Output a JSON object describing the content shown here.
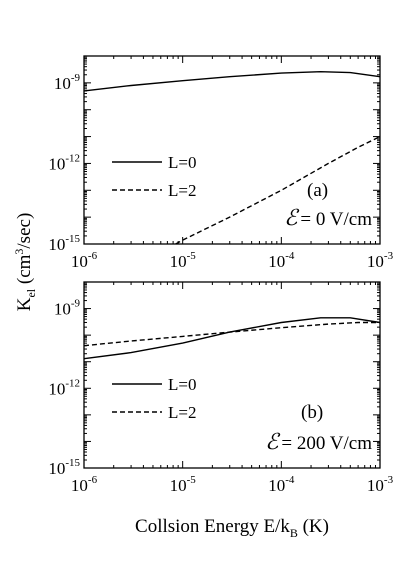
{
  "chart_data": [
    {
      "type": "line",
      "panel_label": "(a)",
      "field_symbol": "ℰ",
      "field_value": "= 0 V/cm",
      "xscale": "log",
      "yscale": "log",
      "xlim": [
        1e-06,
        0.001
      ],
      "ylim": [
        1e-15,
        1e-08
      ],
      "x_ticks": [
        {
          "base": "10",
          "exp": "-6",
          "value": 1e-06
        },
        {
          "base": "10",
          "exp": "-5",
          "value": 1e-05
        },
        {
          "base": "10",
          "exp": "-4",
          "value": 0.0001
        },
        {
          "base": "10",
          "exp": "-3",
          "value": 0.001
        }
      ],
      "y_ticks": [
        {
          "base": "10",
          "exp": "-9",
          "value": 1e-09
        },
        {
          "base": "10",
          "exp": "-12",
          "value": 1e-12
        },
        {
          "base": "10",
          "exp": "-15",
          "value": 1e-15
        }
      ],
      "legend": {
        "placement": "middle-left"
      },
      "series": [
        {
          "name": "L=0",
          "style": "solid",
          "x": [
            1e-06,
            3e-06,
            1e-05,
            3e-05,
            0.0001,
            0.00025,
            0.0005,
            0.001
          ],
          "y": [
            5e-10,
            8e-10,
            1.2e-09,
            1.7e-09,
            2.3e-09,
            2.6e-09,
            2.4e-09,
            1.7e-09
          ]
        },
        {
          "name": "L=2",
          "style": "dashed",
          "x": [
            8.5e-06,
            1e-05,
            3e-05,
            0.0001,
            0.0003,
            0.0006,
            0.001
          ],
          "y": [
            1e-15,
            1.4e-15,
            1e-14,
            1e-13,
            1e-12,
            4e-12,
            1e-11
          ]
        }
      ]
    },
    {
      "type": "line",
      "panel_label": "(b)",
      "field_symbol": "ℰ",
      "field_value": "= 200 V/cm",
      "xscale": "log",
      "yscale": "log",
      "xlim": [
        1e-06,
        0.001
      ],
      "ylim": [
        1e-15,
        1e-08
      ],
      "x_ticks": [
        {
          "base": "10",
          "exp": "-6",
          "value": 1e-06
        },
        {
          "base": "10",
          "exp": "-5",
          "value": 1e-05
        },
        {
          "base": "10",
          "exp": "-4",
          "value": 0.0001
        },
        {
          "base": "10",
          "exp": "-3",
          "value": 0.001
        }
      ],
      "y_ticks": [
        {
          "base": "10",
          "exp": "-9",
          "value": 1e-09
        },
        {
          "base": "10",
          "exp": "-12",
          "value": 1e-12
        },
        {
          "base": "10",
          "exp": "-15",
          "value": 1e-15
        }
      ],
      "legend": {
        "placement": "middle-left"
      },
      "series": [
        {
          "name": "L=0",
          "style": "solid",
          "x": [
            1e-06,
            3e-06,
            1e-05,
            3e-05,
            0.0001,
            0.00025,
            0.0005,
            0.001
          ],
          "y": [
            1.3e-11,
            2.2e-11,
            5e-11,
            1.3e-10,
            3e-10,
            4.5e-10,
            4.5e-10,
            3e-10
          ]
        },
        {
          "name": "L=2",
          "style": "dashed",
          "x": [
            1e-06,
            3e-06,
            1e-05,
            3e-05,
            0.0001,
            0.0003,
            0.0006,
            0.001
          ],
          "y": [
            4e-11,
            6e-11,
            9e-11,
            1.3e-10,
            1.9e-10,
            2.6e-10,
            3e-10,
            3e-10
          ]
        }
      ]
    }
  ],
  "y_axis_title": {
    "main": "K",
    "sub": "el",
    "pre": " (cm",
    "sup": "3",
    "post": "/sec)"
  },
  "x_axis_title": {
    "main": "Collsion Energy E/k",
    "sub": "B",
    "post": " (K)"
  }
}
